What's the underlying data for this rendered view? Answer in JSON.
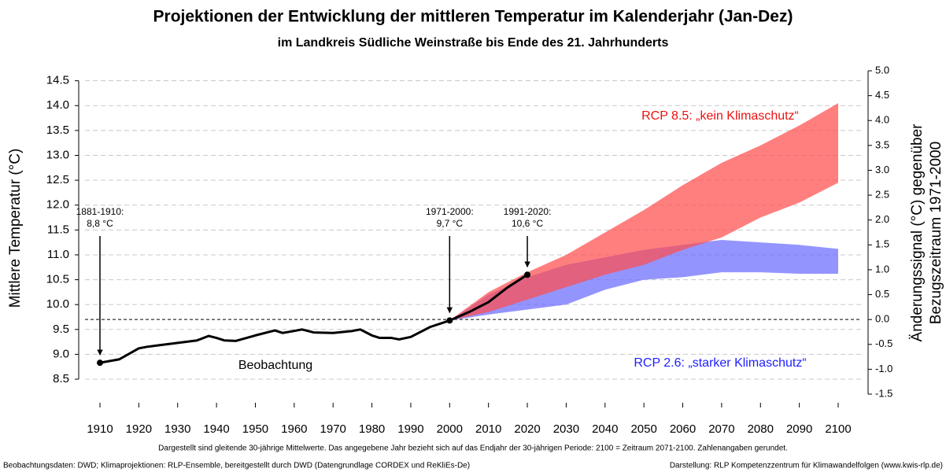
{
  "chart_data": {
    "type": "line",
    "title": "Projektionen der Entwicklung der mittleren Temperatur im Kalenderjahr (Jan-Dez)",
    "subtitle": "im Landkreis Südliche Weinstraße bis Ende des 21. Jahrhunderts",
    "y_label": "Mittlere Temperatur (°C)",
    "y2_label": [
      "Änderungssignal (°C) gegenüber",
      "Bezugszeitraum 1971-2000"
    ],
    "xlim": [
      1910,
      2100
    ],
    "xticks": [
      1910,
      1920,
      1930,
      1940,
      1950,
      1960,
      1970,
      1980,
      1990,
      2000,
      2010,
      2020,
      2030,
      2040,
      2050,
      2060,
      2070,
      2080,
      2090,
      2100
    ],
    "ylim": [
      8.2,
      14.7
    ],
    "yticks": [
      8.5,
      {
        "value": 9,
        "label": "9.0"
      },
      9.5,
      {
        "value": 10,
        "label": "10.0"
      },
      10.5,
      {
        "value": 11,
        "label": "11.0"
      },
      11.5,
      {
        "value": 12,
        "label": "12.0"
      },
      12.5,
      {
        "value": 13,
        "label": "13.0"
      },
      13.5,
      {
        "value": 14,
        "label": "14.0"
      },
      14.5
    ],
    "y2lim": [
      -1.5,
      5.0
    ],
    "y2ticks": [
      -1.5,
      {
        "value": -1,
        "label": "-1.0"
      },
      -0.5,
      {
        "value": 0,
        "label": "0.0"
      },
      0.5,
      {
        "value": 1,
        "label": "1.0"
      },
      1.5,
      {
        "value": 2,
        "label": "2.0"
      },
      2.5,
      {
        "value": 3,
        "label": "3.0"
      },
      3.5,
      {
        "value": 4,
        "label": "4.0"
      },
      4.5,
      {
        "value": 5,
        "label": "5.0"
      }
    ],
    "grid": true,
    "series": [
      {
        "name": "Beobachtung",
        "color": "#000000",
        "x": [
          1910,
          1915,
          1920,
          1922,
          1925,
          1930,
          1935,
          1938,
          1940,
          1942,
          1945,
          1950,
          1955,
          1957,
          1960,
          1962,
          1965,
          1970,
          1975,
          1977,
          1980,
          1982,
          1985,
          1987,
          1990,
          1995,
          2000,
          2005,
          2010,
          2015,
          2020
        ],
        "values": [
          8.83,
          8.9,
          9.12,
          9.15,
          9.18,
          9.23,
          9.28,
          9.37,
          9.33,
          9.28,
          9.27,
          9.38,
          9.48,
          9.43,
          9.47,
          9.5,
          9.44,
          9.43,
          9.47,
          9.5,
          9.38,
          9.33,
          9.33,
          9.3,
          9.35,
          9.55,
          9.68,
          9.85,
          10.05,
          10.35,
          10.6
        ]
      },
      {
        "name": "RCP 2.6: „starker Klimaschutz“",
        "color": "#6b6bff",
        "x": [
          2000,
          2010,
          2020,
          2030,
          2040,
          2050,
          2060,
          2070,
          2080,
          2090,
          2100
        ],
        "lower": [
          9.68,
          9.8,
          9.9,
          10.0,
          10.3,
          10.5,
          10.55,
          10.65,
          10.65,
          10.62,
          10.62
        ],
        "upper": [
          9.68,
          10.2,
          10.55,
          10.8,
          10.95,
          11.1,
          11.2,
          11.3,
          11.25,
          11.2,
          11.12
        ]
      },
      {
        "name": "RCP 8.5: „kein Klimaschutz“",
        "color": "#ff4d4d",
        "x": [
          2000,
          2010,
          2020,
          2030,
          2040,
          2050,
          2060,
          2070,
          2080,
          2090,
          2100
        ],
        "lower": [
          9.68,
          9.85,
          10.1,
          10.35,
          10.6,
          10.8,
          11.1,
          11.35,
          11.75,
          12.05,
          12.45
        ],
        "upper": [
          9.68,
          10.25,
          10.65,
          11.0,
          11.45,
          11.9,
          12.4,
          12.85,
          13.2,
          13.6,
          14.05
        ]
      }
    ],
    "annotations": [
      {
        "lines": [
          "1881-1910:",
          "8,8 °C"
        ]
      },
      {
        "lines": [
          "1971-2000:",
          "9,7 °C"
        ]
      },
      {
        "lines": [
          "1991-2020:",
          "10,6 °C"
        ]
      }
    ],
    "note": "Dargestellt sind gleitende 30-jährige Mittelwerte. Das angegebene Jahr bezieht sich auf das Endjahr der 30-jährigen Periode: 2100 = Zeitraum 2071-2100. Zahlenangaben gerundet.",
    "source_left": "Beobachtungsdaten: DWD; Klimaprojektionen: RLP-Ensemble, bereitgestellt durch DWD (Datengrundlage CORDEX und ReKliEs-De)",
    "source_right": "Darstellung: RLP Kompetenzzentrum für Klimawandelfolgen (www.kwis-rlp.de)"
  }
}
